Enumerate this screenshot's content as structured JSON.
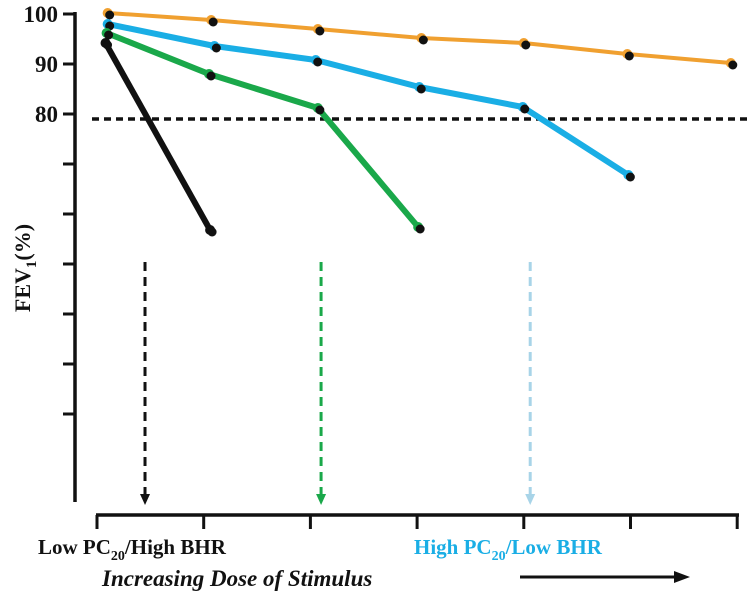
{
  "chart_data": {
    "type": "line",
    "title": "",
    "ylabel": "FEV",
    "ylabel_sub": "1",
    "ylabel_suffix": "(%)",
    "xlabel": "Increasing Dose of Stimulus",
    "ylim": [
      3,
      101
    ],
    "xlim": [
      0,
      6
    ],
    "y_ticks": [
      100,
      90,
      80,
      70,
      60,
      50,
      40,
      30,
      20
    ],
    "y_tick_labels": [
      "100",
      "90",
      "80"
    ],
    "x_ticks": [
      0,
      1,
      2,
      3,
      4,
      5,
      6
    ],
    "x_annotations": {
      "low": {
        "pre": "Low PC",
        "sub": "20",
        "post": "/High BHR",
        "color": "#111111"
      },
      "high": {
        "pre": "High PC",
        "sub": "20",
        "post": "/Low BHR",
        "color": "#1aaee5"
      }
    },
    "threshold": {
      "value": 79,
      "style": "dotted"
    },
    "series": [
      {
        "name": "orange",
        "color": "#f0a030",
        "x": [
          0.1,
          1.07,
          2.07,
          3.04,
          4.0,
          4.97,
          5.94
        ],
        "y": [
          100.2,
          98.8,
          97,
          95.2,
          94.2,
          92,
          90.2
        ]
      },
      {
        "name": "blue",
        "color": "#1aaee5",
        "x": [
          0.1,
          1.1,
          2.05,
          3.02,
          3.99,
          4.98
        ],
        "y": [
          98,
          93.6,
          90.8,
          85.4,
          81.4,
          67.8
        ]
      },
      {
        "name": "green",
        "color": "#1aa84a",
        "x": [
          0.09,
          1.05,
          2.07,
          3.01
        ],
        "y": [
          96.2,
          88,
          81.2,
          57.4
        ]
      },
      {
        "name": "black",
        "color": "#111111",
        "x": [
          0.08,
          1.06
        ],
        "y": [
          94.2,
          56.8
        ]
      }
    ],
    "pc20_arrows": [
      {
        "series": "black",
        "x": 0.45,
        "color": "#111111"
      },
      {
        "series": "green",
        "x": 2.1,
        "color": "#1aa84a"
      },
      {
        "series": "blue",
        "x": 4.06,
        "color": "#a8d4e8"
      }
    ]
  }
}
